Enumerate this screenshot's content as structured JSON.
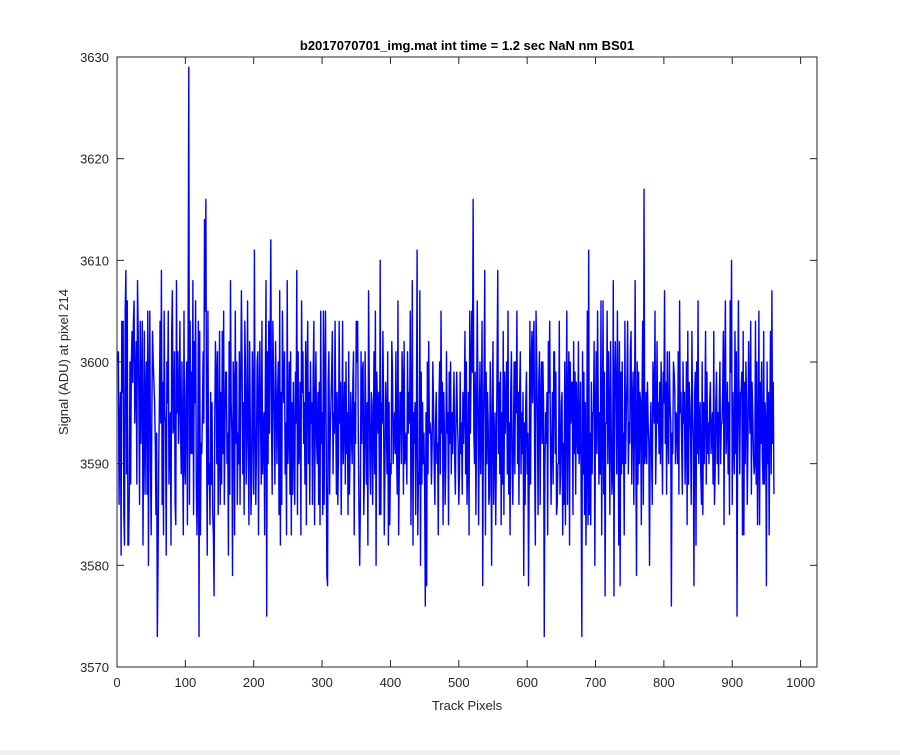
{
  "chart_data": {
    "type": "line",
    "title": "b2017070701_img.mat int time = 1.2 sec  NaN nm BS01",
    "xlabel": "Track Pixels",
    "ylabel": "Signal (ADU) at pixel 214",
    "xlim": [
      0,
      1024
    ],
    "ylim": [
      3570,
      3630
    ],
    "xticks": [
      0,
      100,
      200,
      300,
      400,
      500,
      600,
      700,
      800,
      900,
      1000
    ],
    "yticks": [
      3570,
      3580,
      3590,
      3600,
      3610,
      3620,
      3630
    ],
    "grid": false,
    "line_color": "#0000ff",
    "series": [
      {
        "name": "",
        "x_start": 1,
        "x_step": 1,
        "values": [
          3600,
          3601,
          3586,
          3594,
          3597,
          3581,
          3604,
          3597,
          3604,
          3585,
          3582,
          3605,
          3609,
          3589,
          3606,
          3582,
          3582,
          3587,
          3600,
          3588,
          3600,
          3603,
          3598,
          3604,
          3606,
          3594,
          3598,
          3602,
          3588,
          3608,
          3603,
          3596,
          3586,
          3604,
          3592,
          3598,
          3604,
          3582,
          3593,
          3603,
          3587,
          3597,
          3600,
          3587,
          3605,
          3580,
          3598,
          3605,
          3590,
          3583,
          3595,
          3603,
          3600,
          3598,
          3596,
          3592,
          3585,
          3593,
          3573,
          3580,
          3590,
          3596,
          3604,
          3594,
          3609,
          3586,
          3598,
          3583,
          3605,
          3595,
          3594,
          3581,
          3600,
          3596,
          3605,
          3588,
          3593,
          3595,
          3582,
          3603,
          3607,
          3593,
          3594,
          3601,
          3586,
          3584,
          3608,
          3595,
          3601,
          3592,
          3596,
          3604,
          3593,
          3589,
          3600,
          3591,
          3583,
          3605,
          3590,
          3588,
          3597,
          3600,
          3584,
          3603,
          3629,
          3586,
          3604,
          3591,
          3599,
          3591,
          3608,
          3585,
          3602,
          3596,
          3606,
          3588,
          3583,
          3589,
          3604,
          3573,
          3603,
          3583,
          3592,
          3591,
          3595,
          3601,
          3594,
          3614,
          3605,
          3616,
          3593,
          3581,
          3605,
          3588,
          3590,
          3584,
          3597,
          3588,
          3596,
          3585,
          3583,
          3577,
          3594,
          3602,
          3599,
          3590,
          3601,
          3585,
          3591,
          3603,
          3586,
          3597,
          3588,
          3603,
          3591,
          3605,
          3586,
          3594,
          3599,
          3599,
          3590,
          3593,
          3581,
          3602,
          3587,
          3608,
          3596,
          3593,
          3579,
          3600,
          3598,
          3583,
          3605,
          3592,
          3600,
          3586,
          3593,
          3590,
          3601,
          3586,
          3598,
          3607,
          3600,
          3589,
          3596,
          3585,
          3604,
          3599,
          3588,
          3593,
          3606,
          3592,
          3584,
          3602,
          3594,
          3585,
          3588,
          3601,
          3596,
          3587,
          3611,
          3594,
          3586,
          3591,
          3600,
          3601,
          3583,
          3596,
          3602,
          3594,
          3588,
          3604,
          3589,
          3593,
          3595,
          3583,
          3598,
          3608,
          3575,
          3601,
          3590,
          3604,
          3593,
          3602,
          3612,
          3594,
          3587,
          3604,
          3599,
          3593,
          3588,
          3602,
          3596,
          3590,
          3597,
          3600,
          3585,
          3607,
          3582,
          3597,
          3586,
          3605,
          3598,
          3596,
          3601,
          3589,
          3594,
          3583,
          3608,
          3590,
          3593,
          3600,
          3587,
          3601,
          3583,
          3596,
          3587,
          3598,
          3592,
          3586,
          3599,
          3594,
          3609,
          3585,
          3601,
          3590,
          3592,
          3598,
          3583,
          3606,
          3597,
          3601,
          3592,
          3596,
          3588,
          3602,
          3584,
          3599,
          3604,
          3590,
          3597,
          3586,
          3600,
          3594,
          3596,
          3586,
          3599,
          3604,
          3584,
          3595,
          3601,
          3592,
          3590,
          3597,
          3586,
          3598,
          3584,
          3605,
          3592,
          3595,
          3585,
          3605,
          3586,
          3598,
          3605,
          3593,
          3579,
          3578,
          3598,
          3601,
          3587,
          3593,
          3596,
          3599,
          3603,
          3589,
          3595,
          3593,
          3604,
          3595,
          3587,
          3597,
          3586,
          3591,
          3604,
          3594,
          3598,
          3585,
          3593,
          3604,
          3590,
          3594,
          3598,
          3588,
          3600,
          3591,
          3595,
          3585,
          3601,
          3587,
          3591,
          3597,
          3593,
          3590,
          3598,
          3601,
          3583,
          3596,
          3592,
          3604,
          3600,
          3604,
          3593,
          3585,
          3580,
          3586,
          3601,
          3592,
          3599,
          3600,
          3585,
          3589,
          3601,
          3594,
          3588,
          3596,
          3582,
          3607,
          3598,
          3590,
          3587,
          3597,
          3596,
          3586,
          3593,
          3601,
          3589,
          3605,
          3580,
          3599,
          3596,
          3593,
          3597,
          3585,
          3610,
          3585,
          3596,
          3594,
          3603,
          3595,
          3583,
          3590,
          3598,
          3595,
          3589,
          3601,
          3582,
          3596,
          3584,
          3590,
          3589,
          3602,
          3599,
          3590,
          3593,
          3595,
          3591,
          3601,
          3591,
          3587,
          3606,
          3583,
          3590,
          3597,
          3597,
          3590,
          3601,
          3598,
          3587,
          3602,
          3590,
          3591,
          3593,
          3588,
          3601,
          3593,
          3597,
          3594,
          3605,
          3584,
          3593,
          3608,
          3582,
          3595,
          3592,
          3596,
          3585,
          3594,
          3611,
          3583,
          3589,
          3588,
          3607,
          3580,
          3599,
          3588,
          3596,
          3590,
          3593,
          3588,
          3576,
          3595,
          3578,
          3600,
          3589,
          3602,
          3593,
          3594,
          3593,
          3588,
          3592,
          3600,
          3596,
          3590,
          3586,
          3594,
          3597,
          3590,
          3592,
          3583,
          3596,
          3600,
          3589,
          3605,
          3593,
          3598,
          3584,
          3597,
          3593,
          3586,
          3590,
          3601,
          3593,
          3595,
          3584,
          3599,
          3592,
          3600,
          3589,
          3595,
          3591,
          3595,
          3599,
          3590,
          3587,
          3595,
          3599,
          3594,
          3592,
          3586,
          3589,
          3599,
          3591,
          3594,
          3587,
          3597,
          3592,
          3595,
          3603,
          3589,
          3600,
          3586,
          3590,
          3597,
          3583,
          3605,
          3593,
          3600,
          3605,
          3599,
          3616,
          3593,
          3590,
          3599,
          3585,
          3594,
          3606,
          3597,
          3584,
          3594,
          3600,
          3589,
          3594,
          3604,
          3578,
          3594,
          3599,
          3609,
          3583,
          3599,
          3590,
          3597,
          3594,
          3586,
          3587,
          3600,
          3593,
          3580,
          3596,
          3602,
          3586,
          3592,
          3595,
          3584,
          3591,
          3600,
          3609,
          3591,
          3598,
          3589,
          3599,
          3584,
          3595,
          3588,
          3603,
          3585,
          3599,
          3593,
          3596,
          3600,
          3589,
          3605,
          3587,
          3594,
          3583,
          3597,
          3601,
          3590,
          3586,
          3593,
          3600,
          3589,
          3600,
          3595,
          3605,
          3590,
          3597,
          3586,
          3597,
          3601,
          3589,
          3595,
          3591,
          3597,
          3579,
          3594,
          3586,
          3596,
          3599,
          3589,
          3593,
          3578,
          3589,
          3604,
          3588,
          3600,
          3603,
          3596,
          3602,
          3604,
          3590,
          3582,
          3605,
          3600,
          3594,
          3585,
          3598,
          3601,
          3586,
          3596,
          3600,
          3592,
          3600,
          3596,
          3573,
          3590,
          3595,
          3592,
          3597,
          3583,
          3602,
          3597,
          3604,
          3593,
          3586,
          3592,
          3597,
          3588,
          3601,
          3601,
          3591,
          3599,
          3585,
          3586,
          3590,
          3590,
          3604,
          3587,
          3589,
          3596,
          3597,
          3583,
          3592,
          3586,
          3600,
          3584,
          3595,
          3605,
          3586,
          3597,
          3601,
          3582,
          3600,
          3594,
          3598,
          3598,
          3585,
          3602,
          3591,
          3599,
          3587,
          3598,
          3593,
          3591,
          3602,
          3590,
          3592,
          3598,
          3587,
          3573,
          3601,
          3589,
          3599,
          3585,
          3596,
          3582,
          3590,
          3605,
          3584,
          3611,
          3585,
          3593,
          3584,
          3598,
          3589,
          3595,
          3595,
          3602,
          3580,
          3595,
          3601,
          3591,
          3605,
          3596,
          3588,
          3595,
          3589,
          3606,
          3583,
          3593,
          3606,
          3587,
          3599,
          3577,
          3594,
          3594,
          3605,
          3590,
          3601,
          3595,
          3585,
          3602,
          3593,
          3587,
          3589,
          3608,
          3577,
          3598,
          3602,
          3597,
          3589,
          3605,
          3596,
          3582,
          3602,
          3578,
          3599,
          3589,
          3600,
          3590,
          3593,
          3583,
          3604,
          3590,
          3595,
          3598,
          3604,
          3589,
          3594,
          3592,
          3601,
          3603,
          3588,
          3596,
          3599,
          3586,
          3594,
          3608,
          3590,
          3579,
          3600,
          3588,
          3599,
          3590,
          3597,
          3596,
          3584,
          3596,
          3604,
          3586,
          3617,
          3590,
          3591,
          3597,
          3590,
          3598,
          3594,
          3592,
          3580,
          3592,
          3596,
          3591,
          3586,
          3600,
          3597,
          3594,
          3605,
          3588,
          3593,
          3602,
          3594,
          3596,
          3591,
          3598,
          3590,
          3600,
          3594,
          3587,
          3599,
          3596,
          3607,
          3592,
          3598,
          3587,
          3601,
          3593,
          3590,
          3601,
          3596,
          3594,
          3576,
          3593,
          3591,
          3600,
          3599,
          3597,
          3590,
          3595,
          3594,
          3590,
          3601,
          3587,
          3606,
          3595,
          3597,
          3592,
          3587,
          3600,
          3594,
          3597,
          3588,
          3593,
          3600,
          3584,
          3603,
          3588,
          3598,
          3596,
          3593,
          3586,
          3603,
          3595,
          3592,
          3578,
          3597,
          3599,
          3582,
          3600,
          3591,
          3606,
          3590,
          3593,
          3596,
          3589,
          3586,
          3600,
          3585,
          3596,
          3590,
          3595,
          3603,
          3588,
          3599,
          3591,
          3594,
          3590,
          3596,
          3598,
          3591,
          3593,
          3595,
          3588,
          3603,
          3586,
          3589,
          3596,
          3599,
          3590,
          3595,
          3588,
          3596,
          3600,
          3590,
          3594,
          3594,
          3597,
          3603,
          3584,
          3599,
          3606,
          3591,
          3594,
          3598,
          3589,
          3596,
          3585,
          3606,
          3599,
          3610,
          3586,
          3597,
          3592,
          3589,
          3603,
          3591,
          3601,
          3575,
          3593,
          3606,
          3595,
          3589,
          3597,
          3597,
          3599,
          3583,
          3603,
          3583,
          3598,
          3590,
          3600,
          3596,
          3586,
          3592,
          3602,
          3596,
          3593,
          3604,
          3587,
          3598,
          3595,
          3591,
          3589,
          3590,
          3604,
          3588,
          3600,
          3584,
          3591,
          3605,
          3584,
          3598,
          3592,
          3600,
          3591,
          3588,
          3603,
          3588,
          3596,
          3594,
          3578,
          3600,
          3590,
          3597,
          3583,
          3595,
          3603,
          3589,
          3607,
          3592,
          3598,
          3587
        ]
      }
    ]
  }
}
